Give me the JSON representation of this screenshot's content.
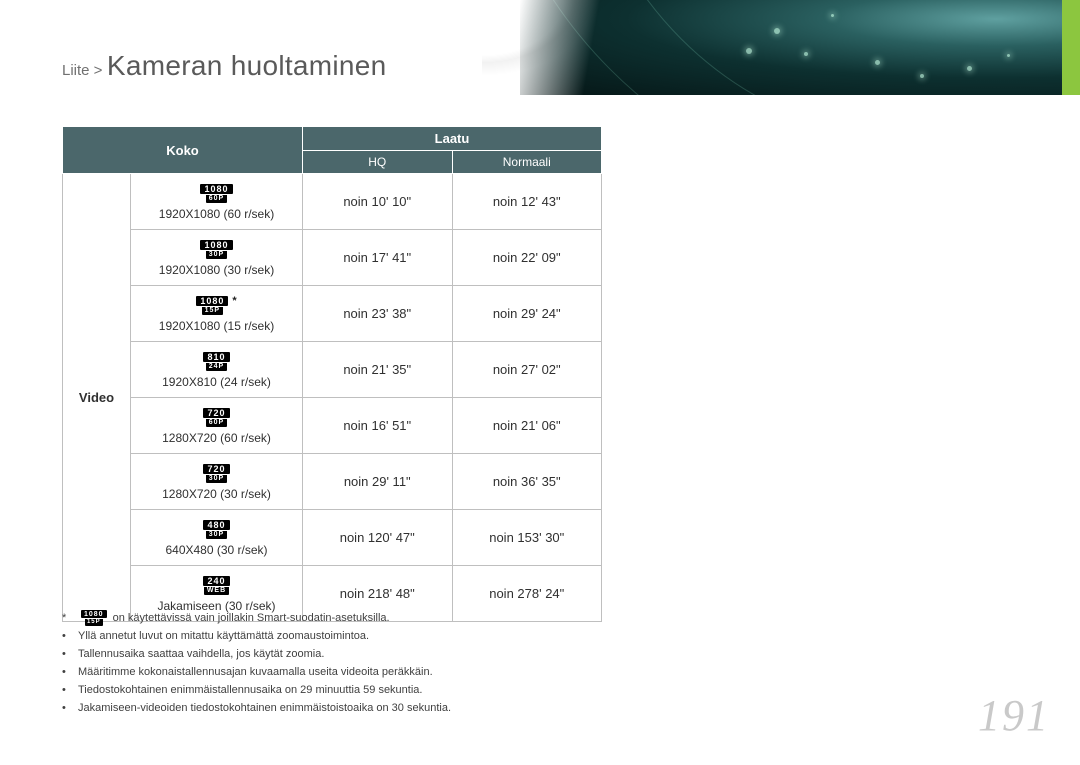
{
  "header": {
    "prefix": "Liite >",
    "title": "Kameran huoltaminen"
  },
  "table": {
    "header": {
      "size": "Koko",
      "quality": "Laatu",
      "hq": "HQ",
      "normal": "Normaali"
    },
    "row_label": "Video",
    "rows": [
      {
        "badge_main": "1080",
        "badge_sub": "60P",
        "star": false,
        "size": "1920X1080 (60 r/sek)",
        "hq": "noin 10' 10\"",
        "normal": "noin 12' 43\""
      },
      {
        "badge_main": "1080",
        "badge_sub": "30P",
        "star": false,
        "size": "1920X1080 (30 r/sek)",
        "hq": "noin 17' 41\"",
        "normal": "noin 22' 09\""
      },
      {
        "badge_main": "1080",
        "badge_sub": "15P",
        "star": true,
        "size": "1920X1080 (15 r/sek)",
        "hq": "noin 23' 38\"",
        "normal": "noin 29' 24\""
      },
      {
        "badge_main": "810",
        "badge_sub": "24P",
        "star": false,
        "size": "1920X810 (24 r/sek)",
        "hq": "noin 21' 35\"",
        "normal": "noin 27' 02\""
      },
      {
        "badge_main": "720",
        "badge_sub": "60P",
        "star": false,
        "size": "1280X720 (60 r/sek)",
        "hq": "noin 16' 51\"",
        "normal": "noin 21' 06\""
      },
      {
        "badge_main": "720",
        "badge_sub": "30P",
        "star": false,
        "size": "1280X720 (30 r/sek)",
        "hq": "noin 29' 11\"",
        "normal": "noin 36' 35\""
      },
      {
        "badge_main": "480",
        "badge_sub": "30P",
        "star": false,
        "size": "640X480 (30 r/sek)",
        "hq": "noin 120' 47\"",
        "normal": "noin 153' 30\""
      },
      {
        "badge_main": "240",
        "badge_sub": "WEB",
        "star": false,
        "size": "Jakamiseen (30 r/sek)",
        "hq": "noin 218' 48\"",
        "normal": "noin 278' 24\""
      }
    ]
  },
  "note_badge": {
    "main": "1080",
    "sub": "15P"
  },
  "notes": [
    "on käytettävissä vain joillakin Smart-suodatin-asetuksilla.",
    "Yllä annetut luvut on mitattu käyttämättä zoomaustoimintoa.",
    "Tallennusaika saattaa vaihdella, jos käytät zoomia.",
    "Määritimme kokonaistallennusajan kuvaamalla useita videoita peräkkäin.",
    "Tiedostokohtainen enimmäistallennusaika on 29 minuuttia 59 sekuntia.",
    "Jakamiseen-videoiden tiedostokohtainen enimmäistoistoaika on 30 sekuntia."
  ],
  "page_number": "191",
  "colors": {
    "header_bg": "#4b676b",
    "accent": "#8cc63f",
    "border": "#bfbfbf",
    "text": "#303030",
    "pagenum": "#c9c9c9"
  }
}
